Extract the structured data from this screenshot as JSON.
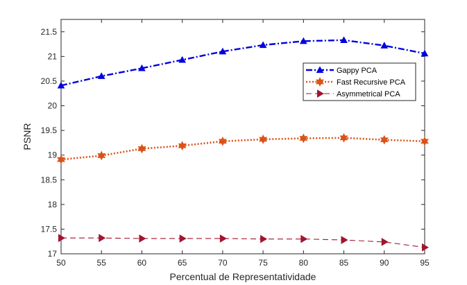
{
  "chart_data": {
    "type": "line",
    "xlabel": "Percentual de Representatividade",
    "ylabel": "PSNR",
    "xlim": [
      50,
      95
    ],
    "ylim": [
      17,
      21.75
    ],
    "xticks": [
      50,
      55,
      60,
      65,
      70,
      75,
      80,
      85,
      90,
      95
    ],
    "yticks": [
      17,
      17.5,
      18,
      18.5,
      19,
      19.5,
      20,
      20.5,
      21,
      21.5
    ],
    "grid": false,
    "legend_position": "top-right",
    "x": [
      50,
      55,
      60,
      65,
      70,
      75,
      80,
      85,
      90,
      95
    ],
    "series": [
      {
        "name": "Gappy PCA",
        "values": [
          20.41,
          20.6,
          20.76,
          20.93,
          21.1,
          21.23,
          21.31,
          21.33,
          21.22,
          21.06
        ],
        "color": "#0000DD",
        "line_style": "dash-dot",
        "marker": "triangle-up"
      },
      {
        "name": "Fast Recursive PCA",
        "values": [
          18.91,
          18.99,
          19.13,
          19.19,
          19.28,
          19.32,
          19.34,
          19.35,
          19.31,
          19.28
        ],
        "color": "#D95319",
        "line_style": "dotted",
        "marker": "hexagram"
      },
      {
        "name": "Asymmetrical PCA",
        "values": [
          17.32,
          17.32,
          17.31,
          17.31,
          17.31,
          17.3,
          17.3,
          17.28,
          17.24,
          17.13
        ],
        "color": "#A2142F",
        "line_style": "dashed",
        "marker": "triangle-right"
      }
    ]
  }
}
